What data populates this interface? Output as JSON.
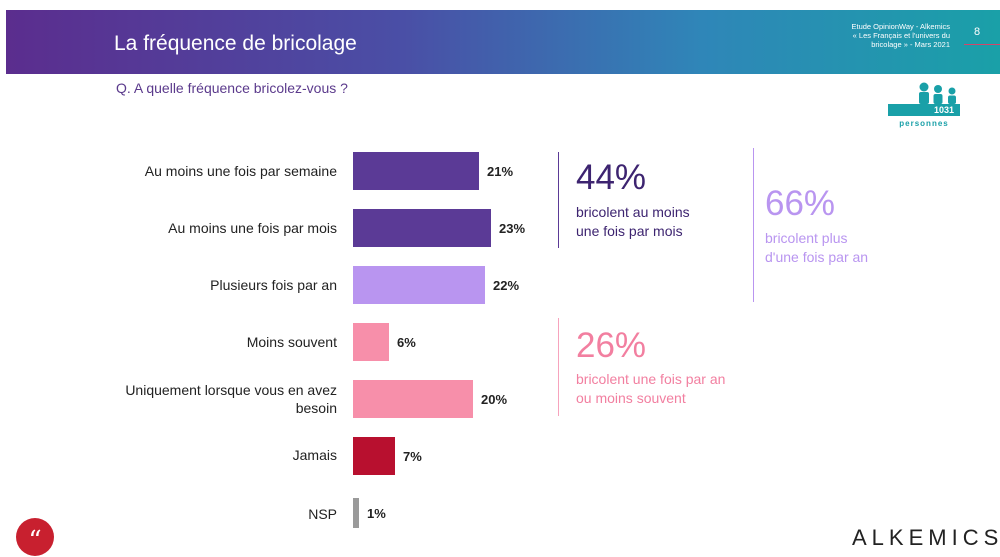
{
  "header": {
    "title": "La fréquence de bricolage",
    "source_lines": [
      "Etude OpinionWay - Alkemics",
      "« Les Français et l'univers du",
      "bricolage » - Mars 2021"
    ],
    "page_number": "8"
  },
  "question": "Q. A quelle fréquence bricolez-vous ?",
  "sample": {
    "count": "1031",
    "label": "personnes"
  },
  "chart_data": {
    "type": "bar",
    "orientation": "horizontal",
    "categories": [
      "Au moins une fois par semaine",
      "Au moins une fois par mois",
      "Plusieurs fois par an",
      "Moins souvent",
      "Uniquement lorsque vous en avez besoin",
      "Jamais",
      "NSP"
    ],
    "values": [
      21,
      23,
      22,
      6,
      20,
      7,
      1
    ],
    "value_labels": [
      "21%",
      "23%",
      "22%",
      "6%",
      "20%",
      "7%",
      "1%"
    ],
    "colors": [
      "#5b3a96",
      "#5b3a96",
      "#b995f0",
      "#f78faa",
      "#f78faa",
      "#b8102f",
      "#9a9a9a"
    ],
    "grid": false
  },
  "summaries": [
    {
      "pct": "44%",
      "text_lines": [
        "bricolent au moins",
        "une fois par mois"
      ],
      "color": "#3d2470"
    },
    {
      "pct": "66%",
      "text_lines": [
        "bricolent plus",
        "d'une fois par an"
      ],
      "color": "#b995f0"
    },
    {
      "pct": "26%",
      "text_lines": [
        "bricolent une fois par an",
        "ou moins souvent"
      ],
      "color": "#f27fa0"
    }
  ],
  "footer": {
    "quote_icon": "quote-icon",
    "brand": "ALKEMICS"
  }
}
